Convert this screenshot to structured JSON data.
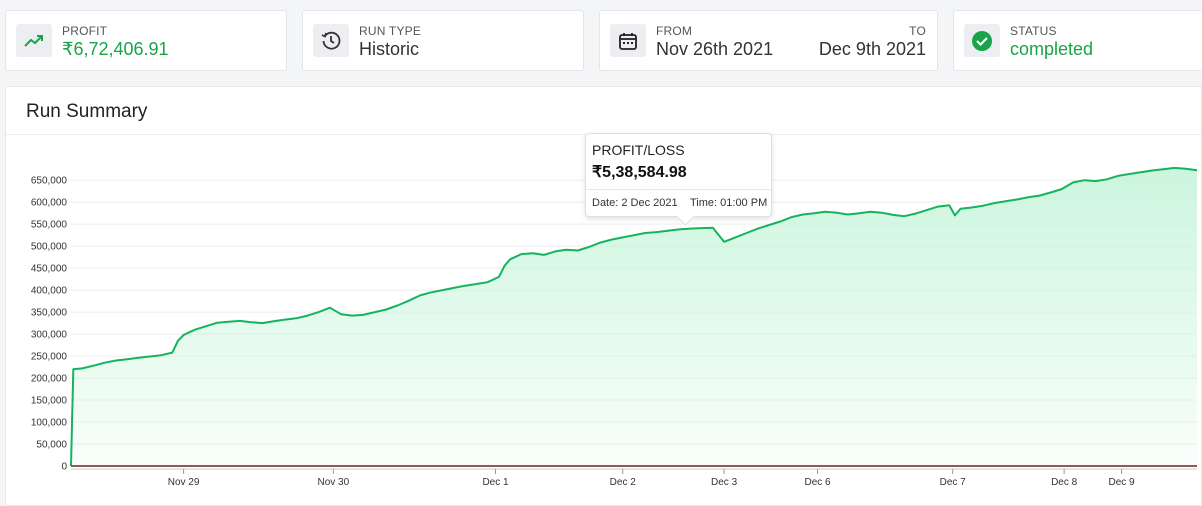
{
  "cards": {
    "profit": {
      "label": "PROFIT",
      "value": "₹6,72,406.91",
      "icon": "trend-up-icon"
    },
    "run_type": {
      "label": "RUN TYPE",
      "value": "Historic",
      "icon": "history-icon"
    },
    "range": {
      "from_label": "FROM",
      "from_value": "Nov 26th 2021",
      "to_label": "TO",
      "to_value": "Dec 9th 2021",
      "icon": "calendar-icon"
    },
    "status": {
      "label": "STATUS",
      "value": "completed",
      "icon": "check-circle-icon"
    }
  },
  "panel": {
    "title": "Run Summary"
  },
  "tooltip": {
    "label": "PROFIT/LOSS",
    "value": "₹5,38,584.98",
    "date": "Date: 2 Dec 2021",
    "time": "Time: 01:00 PM"
  },
  "colors": {
    "accent_green": "#1aa34a",
    "line": "#16b35e",
    "fill": "#c9f5dc"
  },
  "chart_data": {
    "type": "area",
    "title": "",
    "xlabel": "",
    "ylabel": "",
    "ylim": [
      0,
      680000
    ],
    "yticks": [
      0,
      50000,
      100000,
      150000,
      200000,
      250000,
      300000,
      350000,
      400000,
      450000,
      500000,
      550000,
      600000,
      650000
    ],
    "ytick_labels": [
      "0",
      "50,000",
      "100,000",
      "150,000",
      "200,000",
      "250,000",
      "300,000",
      "350,000",
      "400,000",
      "450,000",
      "500,000",
      "550,000",
      "600,000",
      "650,000"
    ],
    "grid": true,
    "xtick_labels": [
      "Nov 29",
      "Nov 30",
      "Dec 1",
      "Dec 2",
      "Dec 3",
      "Dec 6",
      "Dec 7",
      "Dec 8",
      "Dec 9"
    ],
    "xtick_positions": [
      0.1,
      0.233,
      0.377,
      0.49,
      0.58,
      0.663,
      0.783,
      0.882,
      0.933
    ],
    "series": [
      {
        "name": "PROFIT/LOSS",
        "x": [
          0,
          0.002,
          0.01,
          0.02,
          0.03,
          0.04,
          0.05,
          0.06,
          0.07,
          0.08,
          0.09,
          0.095,
          0.1,
          0.11,
          0.12,
          0.13,
          0.14,
          0.15,
          0.16,
          0.17,
          0.18,
          0.19,
          0.2,
          0.21,
          0.22,
          0.23,
          0.24,
          0.25,
          0.26,
          0.27,
          0.28,
          0.29,
          0.3,
          0.31,
          0.32,
          0.33,
          0.34,
          0.35,
          0.36,
          0.37,
          0.38,
          0.385,
          0.39,
          0.4,
          0.41,
          0.42,
          0.43,
          0.44,
          0.45,
          0.46,
          0.47,
          0.48,
          0.49,
          0.5,
          0.51,
          0.52,
          0.53,
          0.54,
          0.55,
          0.56,
          0.57,
          0.58,
          0.59,
          0.6,
          0.61,
          0.62,
          0.63,
          0.64,
          0.65,
          0.66,
          0.67,
          0.68,
          0.69,
          0.7,
          0.71,
          0.72,
          0.73,
          0.74,
          0.75,
          0.76,
          0.77,
          0.78,
          0.785,
          0.79,
          0.8,
          0.81,
          0.82,
          0.83,
          0.84,
          0.85,
          0.86,
          0.87,
          0.88,
          0.89,
          0.9,
          0.91,
          0.92,
          0.93,
          0.94,
          0.95,
          0.96,
          0.97,
          0.98,
          0.99,
          1
        ],
        "values": [
          0,
          220000,
          222000,
          228000,
          235000,
          240000,
          243000,
          246000,
          249000,
          252000,
          258000,
          285000,
          298000,
          310000,
          318000,
          326000,
          328000,
          330000,
          327000,
          325000,
          329000,
          333000,
          336000,
          342000,
          350000,
          360000,
          345000,
          342000,
          344000,
          350000,
          356000,
          365000,
          376000,
          388000,
          395000,
          400000,
          405000,
          410000,
          414000,
          418000,
          430000,
          455000,
          470000,
          482000,
          484000,
          480000,
          488000,
          492000,
          490000,
          498000,
          508000,
          515000,
          520000,
          525000,
          530000,
          532000,
          535000,
          538000,
          540000,
          541000,
          542000,
          510000,
          520000,
          530000,
          540000,
          548000,
          556000,
          566000,
          572000,
          575000,
          578000,
          576000,
          572000,
          575000,
          578000,
          576000,
          571000,
          568000,
          574000,
          582000,
          590000,
          593000,
          570000,
          585000,
          588000,
          592000,
          598000,
          602000,
          606000,
          611000,
          615000,
          622000,
          630000,
          645000,
          650000,
          648000,
          652000,
          660000,
          664000,
          668000,
          672000,
          675000,
          678000,
          676000,
          672406
        ]
      }
    ],
    "highlight": {
      "x": 0.49,
      "value": 538584.98
    }
  }
}
